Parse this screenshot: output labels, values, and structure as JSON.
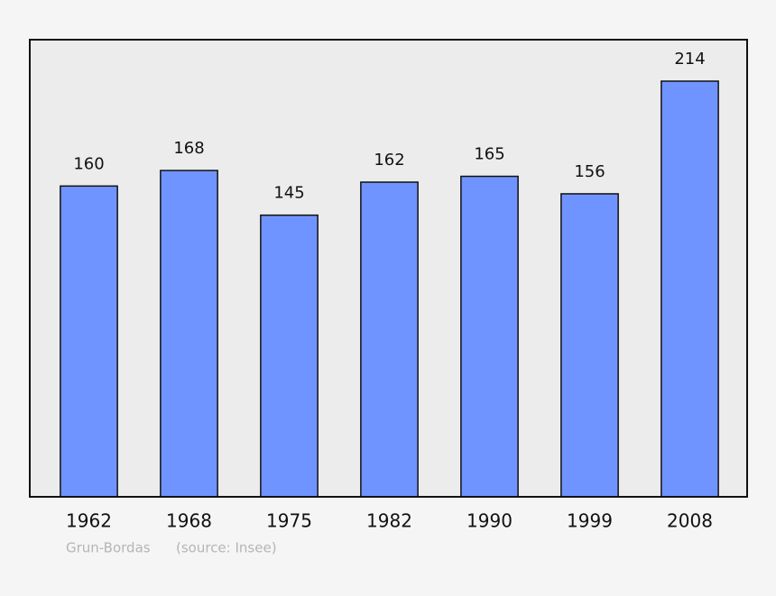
{
  "chart_data": {
    "type": "bar",
    "categories": [
      "1962",
      "1968",
      "1975",
      "1982",
      "1990",
      "1999",
      "2008"
    ],
    "values": [
      160,
      168,
      145,
      162,
      165,
      156,
      214
    ],
    "color": "#7094ff",
    "author": "Grun-Bordas",
    "source": "(source: Insee)"
  }
}
